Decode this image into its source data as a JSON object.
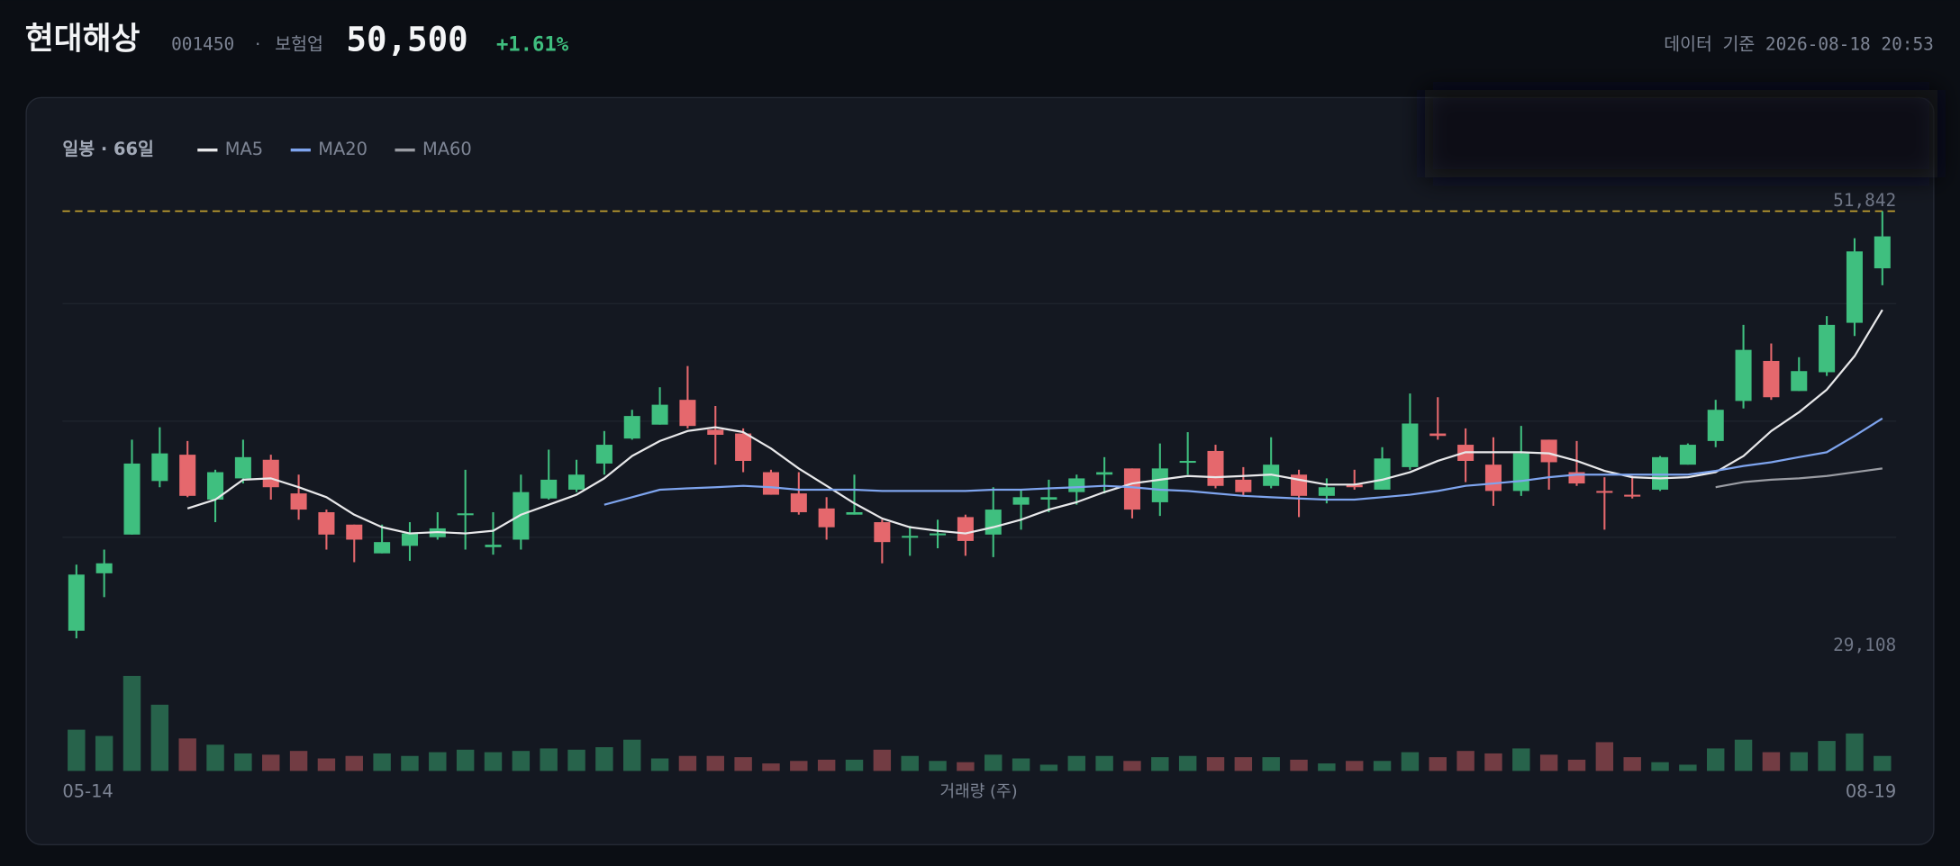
{
  "header": {
    "name": "현대해상",
    "code": "001450",
    "sector": "보험업",
    "price": "50,500",
    "change": "+1.61%",
    "timestamp": "데이터 기준 2026-08-18 20:53"
  },
  "chart_data": {
    "type": "candlestick",
    "title": "일봉 · 66일",
    "categories": [
      "05-14",
      null,
      null,
      null,
      null,
      null,
      null,
      null,
      null,
      null,
      null,
      null,
      null,
      null,
      null,
      null,
      null,
      null,
      null,
      null,
      null,
      null,
      null,
      null,
      null,
      null,
      null,
      null,
      null,
      null,
      null,
      null,
      null,
      null,
      null,
      null,
      null,
      null,
      null,
      null,
      null,
      null,
      null,
      null,
      null,
      null,
      null,
      null,
      null,
      null,
      null,
      null,
      null,
      null,
      null,
      null,
      null,
      null,
      null,
      null,
      null,
      null,
      null,
      null,
      null,
      "08-19"
    ],
    "open": [
      29510,
      32570,
      34630,
      37480,
      38880,
      36490,
      37620,
      38610,
      36820,
      35820,
      35160,
      33630,
      34030,
      34490,
      35690,
      33960,
      34360,
      36550,
      37020,
      38410,
      39740,
      40480,
      41800,
      40210,
      40010,
      37950,
      36820,
      36020,
      35690,
      35290,
      34490,
      34630,
      35560,
      34630,
      36220,
      36490,
      36890,
      37820,
      38150,
      36350,
      38480,
      39080,
      37550,
      37220,
      37820,
      36690,
      37290,
      37020,
      38220,
      40010,
      39410,
      38350,
      36950,
      39680,
      37950,
      36950,
      36750,
      37020,
      38350,
      39610,
      41740,
      43870,
      42270,
      43270,
      45900,
      48800
    ],
    "high": [
      33030,
      33830,
      39680,
      40340,
      39610,
      38080,
      39680,
      38880,
      37820,
      35960,
      35160,
      35160,
      35290,
      35820,
      38080,
      35820,
      37820,
      39150,
      38610,
      40140,
      41270,
      42470,
      43600,
      41470,
      40280,
      38080,
      37950,
      36620,
      37820,
      35420,
      35090,
      35420,
      35690,
      37150,
      37020,
      37550,
      37820,
      38750,
      38150,
      39480,
      40080,
      39410,
      38220,
      39810,
      38080,
      37620,
      38080,
      39280,
      42140,
      41940,
      40280,
      39810,
      40410,
      39680,
      39610,
      37680,
      37750,
      38810,
      39480,
      41800,
      45790,
      44800,
      44070,
      46260,
      50400,
      51842
    ],
    "low": [
      29108,
      31300,
      34630,
      37150,
      36620,
      35290,
      37350,
      36490,
      35420,
      33830,
      33160,
      33630,
      33230,
      34360,
      33830,
      33560,
      33830,
      36490,
      36890,
      37820,
      39680,
      40480,
      40280,
      38350,
      37950,
      36750,
      35690,
      34360,
      35690,
      33100,
      33500,
      33900,
      33500,
      33430,
      34890,
      35820,
      36220,
      36820,
      35490,
      35620,
      37820,
      37090,
      36690,
      37090,
      35560,
      36290,
      37020,
      37020,
      38080,
      39680,
      37420,
      36160,
      36690,
      37020,
      37220,
      34890,
      36550,
      36950,
      38350,
      39280,
      41340,
      41800,
      42270,
      43070,
      45200,
      47900
    ],
    "close": [
      32500,
      33100,
      38410,
      38950,
      36690,
      37950,
      38750,
      37150,
      35960,
      34630,
      34360,
      34230,
      34690,
      34960,
      35760,
      34090,
      36890,
      37550,
      37820,
      39410,
      40940,
      41540,
      40410,
      39940,
      38550,
      36750,
      35820,
      35020,
      35820,
      34230,
      34560,
      34690,
      34290,
      35960,
      36620,
      36620,
      37620,
      37950,
      35960,
      38150,
      38550,
      37220,
      36890,
      38350,
      36690,
      37150,
      37150,
      38680,
      40540,
      39880,
      38550,
      36950,
      38950,
      38480,
      37350,
      36890,
      36690,
      38750,
      39410,
      41270,
      44460,
      41940,
      43330,
      45790,
      49700,
      50500
    ],
    "up_color": "#3fbf7f",
    "down_color": "#e5686d",
    "ylim": [
      28500,
      53100
    ],
    "high_line": {
      "value": 51842,
      "label": "51,842"
    },
    "low_label": {
      "value": 29108,
      "label": "29,108"
    },
    "series": [
      {
        "name": "MA5",
        "color": "#e8e8ea",
        "values": [
          null,
          null,
          null,
          null,
          36020,
          36490,
          37550,
          37620,
          37150,
          36620,
          35690,
          35020,
          34690,
          34760,
          34690,
          34830,
          35690,
          36220,
          36750,
          37620,
          38810,
          39610,
          40140,
          40340,
          40080,
          39210,
          38150,
          37220,
          36290,
          35490,
          35020,
          34830,
          34690,
          35020,
          35420,
          35960,
          36350,
          36890,
          37350,
          37550,
          37750,
          37680,
          37750,
          37820,
          37550,
          37290,
          37290,
          37550,
          37950,
          38550,
          39010,
          39010,
          39010,
          38950,
          38550,
          38020,
          37680,
          37620,
          37680,
          37950,
          38810,
          40140,
          41140,
          42340,
          44130,
          46590
        ]
      },
      {
        "name": "MA20",
        "color": "#7ea4ee",
        "values": [
          null,
          null,
          null,
          null,
          null,
          null,
          null,
          null,
          null,
          null,
          null,
          null,
          null,
          null,
          null,
          null,
          null,
          null,
          null,
          36220,
          36620,
          37020,
          37090,
          37150,
          37220,
          37150,
          37020,
          37020,
          37020,
          36950,
          36950,
          36950,
          36950,
          37020,
          37020,
          37090,
          37150,
          37220,
          37150,
          37020,
          36950,
          36820,
          36690,
          36620,
          36550,
          36490,
          36490,
          36620,
          36750,
          36950,
          37220,
          37350,
          37480,
          37680,
          37820,
          37820,
          37820,
          37820,
          37820,
          38020,
          38280,
          38480,
          38750,
          39010,
          39880,
          40810
        ]
      },
      {
        "name": "MA60",
        "color": "#9a9ca3",
        "values": [
          null,
          null,
          null,
          null,
          null,
          null,
          null,
          null,
          null,
          null,
          null,
          null,
          null,
          null,
          null,
          null,
          null,
          null,
          null,
          null,
          null,
          null,
          null,
          null,
          null,
          null,
          null,
          null,
          null,
          null,
          null,
          null,
          null,
          null,
          null,
          null,
          null,
          null,
          null,
          null,
          null,
          null,
          null,
          null,
          null,
          null,
          null,
          null,
          null,
          null,
          null,
          null,
          null,
          null,
          null,
          null,
          null,
          null,
          null,
          37150,
          37420,
          37550,
          37620,
          37750,
          37950,
          38150
        ]
      }
    ],
    "volume": {
      "label": "거래량 (주)",
      "ylim": [
        0,
        800000
      ],
      "values": [
        330000,
        280000,
        760000,
        530000,
        260000,
        210000,
        140000,
        130000,
        160000,
        100000,
        120000,
        140000,
        120000,
        150000,
        170000,
        150000,
        160000,
        180000,
        170000,
        190000,
        250000,
        100000,
        120000,
        120000,
        110000,
        60000,
        80000,
        90000,
        90000,
        170000,
        120000,
        80000,
        70000,
        130000,
        100000,
        50000,
        120000,
        120000,
        80000,
        110000,
        120000,
        110000,
        110000,
        110000,
        90000,
        60000,
        80000,
        80000,
        150000,
        110000,
        160000,
        140000,
        180000,
        130000,
        90000,
        230000,
        110000,
        70000,
        50000,
        180000,
        250000,
        150000,
        150000,
        240000,
        300000,
        120000
      ]
    }
  }
}
